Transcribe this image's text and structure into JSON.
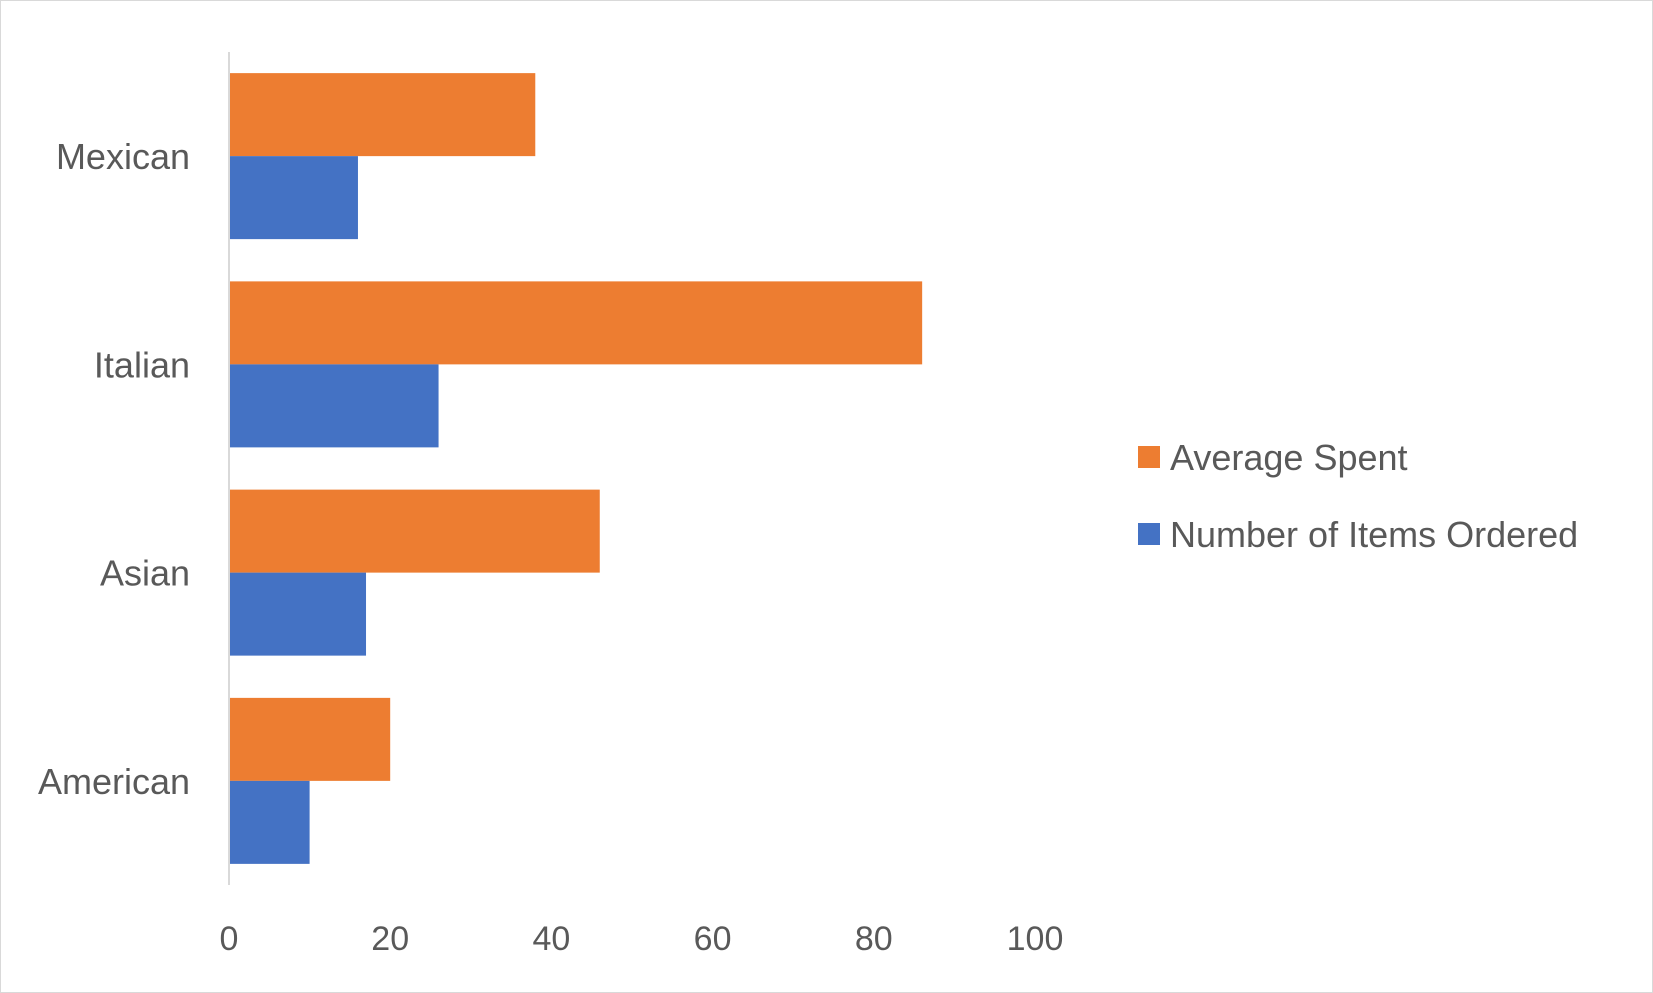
{
  "chart_data": {
    "type": "bar",
    "orientation": "horizontal",
    "categories": [
      "Mexican",
      "Italian",
      "Asian",
      "American"
    ],
    "series": [
      {
        "name": "Average Spent",
        "color": "#ED7D31",
        "values": [
          38,
          86,
          46,
          20
        ]
      },
      {
        "name": "Number of Items Ordered",
        "color": "#4472C4",
        "values": [
          16,
          26,
          17,
          10
        ]
      }
    ],
    "xticks": [
      "0",
      "20",
      "40",
      "60",
      "80",
      "100"
    ],
    "xlim": [
      0,
      100
    ],
    "title": "",
    "xlabel": "",
    "ylabel": "",
    "grid": false,
    "legend_position": "right"
  }
}
